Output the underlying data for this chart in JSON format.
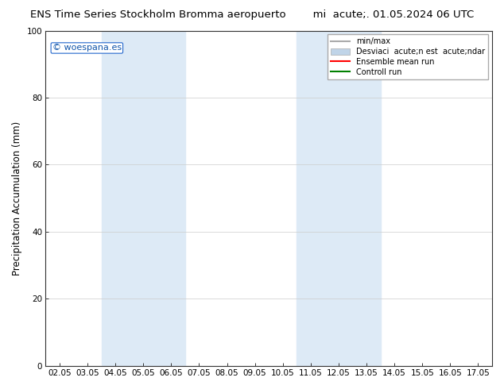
{
  "title_left": "ENS Time Series Stockholm Bromma aeropuerto",
  "title_right": "mi  acute;. 01.05.2024 06 UTC",
  "ylabel": "Precipitation Accumulation (mm)",
  "watermark": "© woespana.es",
  "xlim_left": 2,
  "xlim_right": 17,
  "ylim_bottom": 0,
  "ylim_top": 100,
  "xtick_labels": [
    "02.05",
    "03.05",
    "04.05",
    "05.05",
    "06.05",
    "07.05",
    "08.05",
    "09.05",
    "10.05",
    "11.05",
    "12.05",
    "13.05",
    "14.05",
    "15.05",
    "16.05",
    "17.05"
  ],
  "xtick_positions": [
    2,
    3,
    4,
    5,
    6,
    7,
    8,
    9,
    10,
    11,
    12,
    13,
    14,
    15,
    16,
    17
  ],
  "ytick_labels": [
    "0",
    "20",
    "40",
    "60",
    "80",
    "100"
  ],
  "ytick_positions": [
    0,
    20,
    40,
    60,
    80,
    100
  ],
  "shaded_regions": [
    {
      "xmin": 4,
      "xmax": 6,
      "color": "#ddeaf6"
    },
    {
      "xmin": 11,
      "xmax": 13,
      "color": "#ddeaf6"
    }
  ],
  "legend_entries": [
    {
      "label": "min/max",
      "color": "#aaaaaa",
      "lw": 1.5
    },
    {
      "label": "Desviaci  acute;n est  acute;ndar",
      "color": "#c0d4e8",
      "lw": 8
    },
    {
      "label": "Ensemble mean run",
      "color": "red",
      "lw": 1.5
    },
    {
      "label": "Controll run",
      "color": "green",
      "lw": 1.5
    }
  ],
  "bg_color": "#ffffff",
  "plot_bg_color": "#ffffff",
  "grid_color": "#cccccc",
  "title_fontsize": 9.5,
  "tick_fontsize": 7.5,
  "ylabel_fontsize": 8.5,
  "watermark_fontsize": 8
}
